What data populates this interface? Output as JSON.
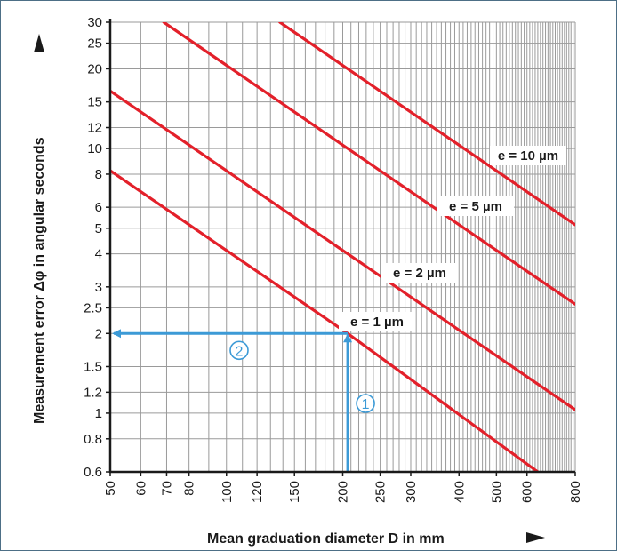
{
  "chart_data": {
    "type": "line",
    "xlabel": "Mean graduation diameter D in mm",
    "ylabel": "Measurement error Δφ in angular seconds",
    "xscale": "log",
    "yscale": "log",
    "xlim": [
      50,
      800
    ],
    "ylim": [
      0.6,
      30
    ],
    "x_ticks": [
      50,
      60,
      70,
      80,
      100,
      120,
      150,
      200,
      250,
      300,
      400,
      500,
      600,
      800
    ],
    "y_ticks": [
      0.6,
      0.8,
      1,
      1.2,
      1.5,
      2,
      2.5,
      3,
      4,
      5,
      6,
      8,
      10,
      12,
      15,
      20,
      25,
      30
    ],
    "x_tick_labels": [
      "50",
      "60",
      "70",
      "80",
      "100",
      "120",
      "150",
      "200",
      "250",
      "300",
      "400",
      "500",
      "600",
      "800"
    ],
    "y_tick_labels": [
      "0.6",
      "0.8",
      "1",
      "1.2",
      "1.5",
      "2",
      "2.5",
      "3",
      "4",
      "5",
      "6",
      "8",
      "10",
      "12",
      "15",
      "20",
      "25",
      "30"
    ],
    "grid": true,
    "series": [
      {
        "name": "e = 1 µm",
        "color": "#e3202a",
        "x": [
          50,
          206,
          640
        ],
        "y": [
          8.25,
          2.0,
          0.6
        ]
      },
      {
        "name": "e = 2 µm",
        "color": "#e3202a",
        "x": [
          50,
          206,
          800
        ],
        "y": [
          16.5,
          4.0,
          1.03
        ]
      },
      {
        "name": "e = 5 µm",
        "color": "#e3202a",
        "x": [
          68.8,
          206,
          800
        ],
        "y": [
          30,
          10.0,
          2.58
        ]
      },
      {
        "name": "e = 10 µm",
        "color": "#e3202a",
        "x": [
          137.5,
          206,
          800
        ],
        "y": [
          30,
          20.0,
          5.15
        ]
      }
    ],
    "annotations": [
      {
        "label": "1",
        "description": "vertical arrow up",
        "x": [
          206,
          206
        ],
        "y": [
          0.6,
          2.0
        ]
      },
      {
        "label": "2",
        "description": "horizontal arrow left",
        "x": [
          206,
          50
        ],
        "y": [
          2.0,
          2.0
        ]
      }
    ],
    "colors": {
      "series": "#e3202a",
      "annotation": "#3c9ad6",
      "grid": "#9a9a9a",
      "axis": "#1a1a1a"
    }
  }
}
